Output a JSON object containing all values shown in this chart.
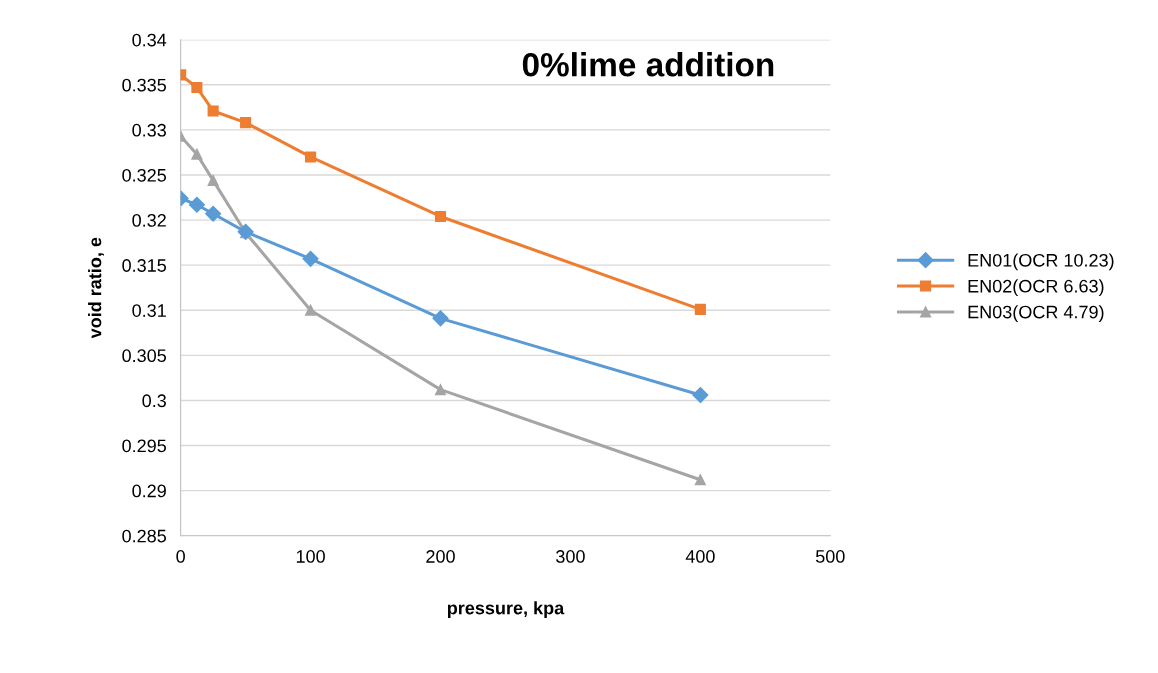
{
  "chart_data": {
    "type": "line",
    "title": "0%lime addition",
    "xlabel": "pressure, kpa",
    "ylabel": "void ratio, e",
    "x": [
      0,
      12.5,
      25,
      50,
      100,
      200,
      400
    ],
    "series": [
      {
        "name": "EN01(OCR 10.23)",
        "color": "#5b9bd5",
        "marker": "diamond",
        "values": [
          0.3224,
          0.3217,
          0.3207,
          0.3187,
          0.3157,
          0.3091,
          0.3006
        ]
      },
      {
        "name": "EN02(OCR 6.63)",
        "color": "#ed7d31",
        "marker": "square",
        "values": [
          0.3361,
          0.3347,
          0.3321,
          0.3308,
          0.327,
          0.3204,
          0.3101
        ]
      },
      {
        "name": "EN03(OCR 4.79)",
        "color": "#a5a5a5",
        "marker": "triangle",
        "values": [
          0.3293,
          0.3273,
          0.3244,
          0.3186,
          0.31,
          0.3012,
          0.2912
        ]
      }
    ],
    "xlim": [
      0,
      500
    ],
    "xticks": [
      0,
      100,
      200,
      300,
      400,
      500
    ],
    "ylim": [
      0.285,
      0.34
    ],
    "yticks": [
      0.285,
      0.29,
      0.295,
      0.3,
      0.305,
      0.31,
      0.315,
      0.32,
      0.325,
      0.33,
      0.335,
      0.34
    ],
    "grid": "y",
    "legend": "right",
    "line_style": "solid"
  }
}
